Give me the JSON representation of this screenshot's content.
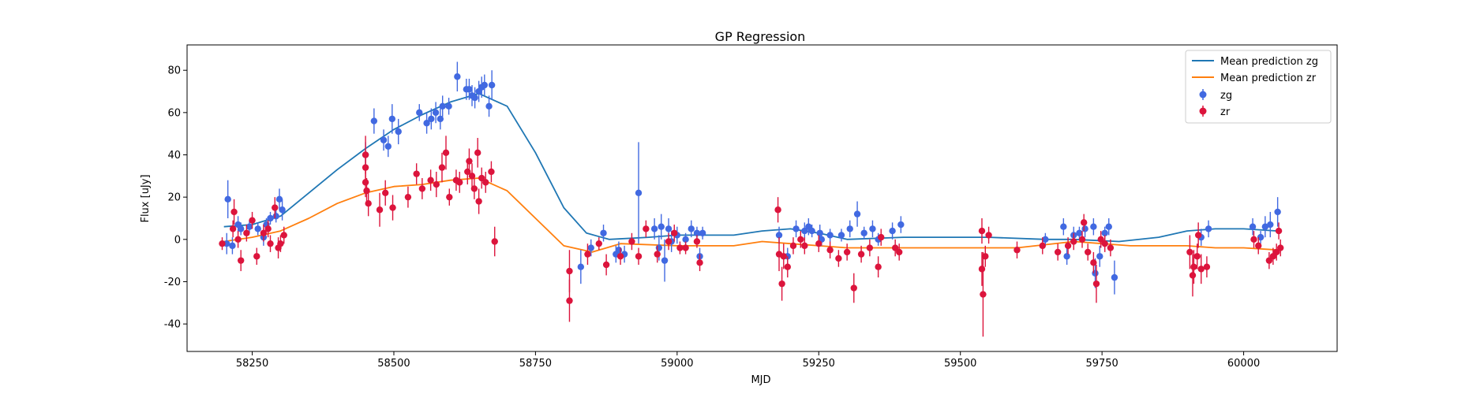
{
  "chart_data": {
    "type": "scatter",
    "title": "GP Regression",
    "xlabel": "MJD",
    "ylabel": "Flux [uJy]",
    "xlim": [
      58135,
      60165
    ],
    "ylim": [
      -53,
      92
    ],
    "x_ticks": [
      58250,
      58500,
      58750,
      59000,
      59250,
      59500,
      59750,
      60000
    ],
    "y_ticks": [
      -40,
      -20,
      0,
      20,
      40,
      60,
      80
    ],
    "grid": false,
    "legend_position": "top-right",
    "series": [
      {
        "name": "Mean prediction zg",
        "kind": "line",
        "color": "#1f77b4",
        "points": [
          [
            58200,
            6
          ],
          [
            58250,
            7
          ],
          [
            58300,
            11
          ],
          [
            58350,
            22
          ],
          [
            58400,
            33
          ],
          [
            58450,
            43
          ],
          [
            58500,
            52
          ],
          [
            58550,
            59
          ],
          [
            58600,
            65
          ],
          [
            58650,
            69
          ],
          [
            58700,
            63
          ],
          [
            58750,
            41
          ],
          [
            58800,
            15
          ],
          [
            58840,
            3
          ],
          [
            58880,
            0
          ],
          [
            58950,
            1
          ],
          [
            59000,
            2
          ],
          [
            59100,
            2
          ],
          [
            59150,
            4
          ],
          [
            59200,
            5
          ],
          [
            59250,
            3
          ],
          [
            59300,
            0
          ],
          [
            59400,
            1
          ],
          [
            59500,
            1
          ],
          [
            59550,
            1
          ],
          [
            59650,
            0
          ],
          [
            59700,
            0
          ],
          [
            59780,
            -1
          ],
          [
            59850,
            1
          ],
          [
            59900,
            4
          ],
          [
            59950,
            5
          ],
          [
            60000,
            5
          ],
          [
            60060,
            4
          ]
        ]
      },
      {
        "name": "Mean prediction zr",
        "kind": "line",
        "color": "#ff7f0e",
        "points": [
          [
            58200,
            -1
          ],
          [
            58250,
            1
          ],
          [
            58300,
            4
          ],
          [
            58350,
            10
          ],
          [
            58400,
            17
          ],
          [
            58450,
            22
          ],
          [
            58500,
            25
          ],
          [
            58550,
            26
          ],
          [
            58600,
            28
          ],
          [
            58650,
            29
          ],
          [
            58700,
            23
          ],
          [
            58750,
            10
          ],
          [
            58800,
            -3
          ],
          [
            58850,
            -6
          ],
          [
            58900,
            -2
          ],
          [
            59000,
            -3
          ],
          [
            59100,
            -3
          ],
          [
            59150,
            -1
          ],
          [
            59200,
            -2
          ],
          [
            59300,
            -4
          ],
          [
            59500,
            -4
          ],
          [
            59600,
            -4
          ],
          [
            59700,
            -1
          ],
          [
            59800,
            -3
          ],
          [
            59900,
            -3
          ],
          [
            59950,
            -4
          ],
          [
            60000,
            -4
          ],
          [
            60060,
            -5
          ]
        ]
      },
      {
        "name": "zg",
        "kind": "errorbar",
        "color": "#4169e1",
        "points": [
          [
            58205,
            -2,
            5
          ],
          [
            58207,
            19,
            9
          ],
          [
            58215,
            -3,
            4
          ],
          [
            58225,
            7,
            4
          ],
          [
            58230,
            5,
            3
          ],
          [
            58245,
            6,
            3
          ],
          [
            58260,
            5,
            3
          ],
          [
            58270,
            1,
            4
          ],
          [
            58275,
            7,
            3
          ],
          [
            58282,
            10,
            3
          ],
          [
            58292,
            11,
            3
          ],
          [
            58298,
            19,
            5
          ],
          [
            58303,
            14,
            5
          ],
          [
            58450,
            40,
            6
          ],
          [
            58465,
            56,
            6
          ],
          [
            58482,
            47,
            5
          ],
          [
            58490,
            44,
            5
          ],
          [
            58497,
            57,
            7
          ],
          [
            58508,
            51,
            6
          ],
          [
            58545,
            60,
            4
          ],
          [
            58558,
            55,
            5
          ],
          [
            58566,
            57,
            5
          ],
          [
            58574,
            60,
            5
          ],
          [
            58582,
            57,
            5
          ],
          [
            58586,
            63,
            5
          ],
          [
            58597,
            63,
            4
          ],
          [
            58612,
            77,
            7
          ],
          [
            58628,
            71,
            5
          ],
          [
            58633,
            71,
            5
          ],
          [
            58638,
            68,
            5
          ],
          [
            58643,
            67,
            5
          ],
          [
            58650,
            70,
            5
          ],
          [
            58655,
            72,
            5
          ],
          [
            58660,
            73,
            5
          ],
          [
            58668,
            63,
            5
          ],
          [
            58673,
            73,
            7
          ],
          [
            58830,
            -13,
            8
          ],
          [
            58848,
            -4,
            4
          ],
          [
            58870,
            3,
            4
          ],
          [
            58892,
            -7,
            4
          ],
          [
            58897,
            -5,
            4
          ],
          [
            58907,
            -7,
            4
          ],
          [
            58932,
            22,
            24
          ],
          [
            58960,
            5,
            5
          ],
          [
            58968,
            -4,
            6
          ],
          [
            58972,
            6,
            6
          ],
          [
            58978,
            -10,
            10
          ],
          [
            58985,
            5,
            5
          ],
          [
            58990,
            -1,
            5
          ],
          [
            59000,
            2,
            4
          ],
          [
            59015,
            0,
            3
          ],
          [
            59025,
            5,
            4
          ],
          [
            59035,
            3,
            3
          ],
          [
            59040,
            -8,
            4
          ],
          [
            59045,
            3,
            3
          ],
          [
            59180,
            2,
            4
          ],
          [
            59195,
            -8,
            4
          ],
          [
            59210,
            5,
            4
          ],
          [
            59225,
            4,
            4
          ],
          [
            59232,
            6,
            4
          ],
          [
            59238,
            4,
            3
          ],
          [
            59252,
            3,
            4
          ],
          [
            59255,
            0,
            3
          ],
          [
            59270,
            2,
            3
          ],
          [
            59290,
            2,
            3
          ],
          [
            59305,
            5,
            4
          ],
          [
            59318,
            12,
            6
          ],
          [
            59330,
            3,
            3
          ],
          [
            59345,
            5,
            4
          ],
          [
            59355,
            0,
            3
          ],
          [
            59380,
            4,
            4
          ],
          [
            59395,
            7,
            4
          ],
          [
            59650,
            0,
            3
          ],
          [
            59682,
            6,
            4
          ],
          [
            59688,
            -8,
            4
          ],
          [
            59700,
            2,
            4
          ],
          [
            59710,
            3,
            3
          ],
          [
            59720,
            5,
            4
          ],
          [
            59735,
            6,
            4
          ],
          [
            59738,
            -16,
            7
          ],
          [
            59746,
            -8,
            5
          ],
          [
            59755,
            3,
            3
          ],
          [
            59762,
            6,
            4
          ],
          [
            59772,
            -18,
            8
          ],
          [
            59925,
            1,
            4
          ],
          [
            59938,
            5,
            4
          ],
          [
            60016,
            6,
            4
          ],
          [
            60030,
            1,
            3
          ],
          [
            60038,
            6,
            5
          ],
          [
            60047,
            7,
            6
          ],
          [
            60060,
            13,
            7
          ]
        ]
      },
      {
        "name": "zr",
        "kind": "errorbar",
        "color": "#dc143c",
        "points": [
          [
            58197,
            -2,
            3
          ],
          [
            58216,
            5,
            4
          ],
          [
            58218,
            13,
            6
          ],
          [
            58225,
            0,
            4
          ],
          [
            58230,
            -10,
            5
          ],
          [
            58240,
            3,
            4
          ],
          [
            58250,
            9,
            4
          ],
          [
            58258,
            -8,
            4
          ],
          [
            58270,
            3,
            4
          ],
          [
            58278,
            5,
            4
          ],
          [
            58282,
            -2,
            4
          ],
          [
            58290,
            15,
            5
          ],
          [
            58296,
            -4,
            5
          ],
          [
            58300,
            -2,
            4
          ],
          [
            58306,
            2,
            4
          ],
          [
            58450,
            40,
            9
          ],
          [
            58450,
            34,
            7
          ],
          [
            58450,
            27,
            7
          ],
          [
            58452,
            23,
            6
          ],
          [
            58455,
            17,
            6
          ],
          [
            58475,
            14,
            8
          ],
          [
            58485,
            22,
            6
          ],
          [
            58498,
            15,
            6
          ],
          [
            58525,
            20,
            5
          ],
          [
            58540,
            31,
            5
          ],
          [
            58550,
            24,
            5
          ],
          [
            58565,
            28,
            5
          ],
          [
            58575,
            26,
            6
          ],
          [
            58585,
            34,
            7
          ],
          [
            58592,
            41,
            8
          ],
          [
            58598,
            20,
            4
          ],
          [
            58610,
            28,
            5
          ],
          [
            58616,
            27,
            5
          ],
          [
            58630,
            32,
            6
          ],
          [
            58633,
            37,
            6
          ],
          [
            58638,
            30,
            6
          ],
          [
            58642,
            24,
            5
          ],
          [
            58648,
            41,
            7
          ],
          [
            58650,
            18,
            6
          ],
          [
            58655,
            29,
            5
          ],
          [
            58662,
            27,
            5
          ],
          [
            58672,
            32,
            5
          ],
          [
            58678,
            -1,
            7
          ],
          [
            58810,
            -15,
            10
          ],
          [
            58810,
            -29,
            10
          ],
          [
            58842,
            -7,
            5
          ],
          [
            58862,
            -2,
            3
          ],
          [
            58875,
            -12,
            5
          ],
          [
            58900,
            -8,
            4
          ],
          [
            58920,
            -1,
            4
          ],
          [
            58932,
            -8,
            4
          ],
          [
            58945,
            5,
            4
          ],
          [
            58965,
            -7,
            4
          ],
          [
            58985,
            -1,
            4
          ],
          [
            58995,
            3,
            4
          ],
          [
            59005,
            -4,
            3
          ],
          [
            59015,
            -4,
            3
          ],
          [
            59035,
            -1,
            3
          ],
          [
            59040,
            -11,
            4
          ],
          [
            59178,
            14,
            6
          ],
          [
            59180,
            -7,
            8
          ],
          [
            59185,
            -21,
            8
          ],
          [
            59188,
            -8,
            6
          ],
          [
            59195,
            -13,
            5
          ],
          [
            59205,
            -3,
            4
          ],
          [
            59218,
            0,
            4
          ],
          [
            59225,
            -3,
            4
          ],
          [
            59250,
            -2,
            4
          ],
          [
            59270,
            -5,
            4
          ],
          [
            59285,
            -9,
            4
          ],
          [
            59300,
            -6,
            4
          ],
          [
            59312,
            -23,
            7
          ],
          [
            59325,
            -7,
            4
          ],
          [
            59340,
            -4,
            4
          ],
          [
            59355,
            -13,
            5
          ],
          [
            59360,
            1,
            4
          ],
          [
            59385,
            -4,
            4
          ],
          [
            59392,
            -6,
            4
          ],
          [
            59538,
            4,
            6
          ],
          [
            59538,
            -14,
            8
          ],
          [
            59540,
            -26,
            20
          ],
          [
            59544,
            -8,
            5
          ],
          [
            59550,
            2,
            4
          ],
          [
            59600,
            -5,
            4
          ],
          [
            59645,
            -3,
            4
          ],
          [
            59672,
            -6,
            4
          ],
          [
            59690,
            -3,
            4
          ],
          [
            59700,
            -1,
            4
          ],
          [
            59715,
            0,
            4
          ],
          [
            59718,
            8,
            4
          ],
          [
            59725,
            -6,
            4
          ],
          [
            59735,
            -11,
            5
          ],
          [
            59740,
            -21,
            9
          ],
          [
            59748,
            0,
            4
          ],
          [
            59755,
            -2,
            4
          ],
          [
            59765,
            -4,
            4
          ],
          [
            59905,
            -6,
            8
          ],
          [
            59910,
            -17,
            10
          ],
          [
            59912,
            -13,
            8
          ],
          [
            59918,
            -8,
            6
          ],
          [
            59920,
            2,
            6
          ],
          [
            59925,
            -14,
            7
          ],
          [
            59935,
            -13,
            5
          ],
          [
            60018,
            0,
            4
          ],
          [
            60026,
            -3,
            4
          ],
          [
            60045,
            -10,
            4
          ],
          [
            60052,
            -8,
            4
          ],
          [
            60058,
            -6,
            4
          ],
          [
            60062,
            4,
            4
          ],
          [
            60065,
            -4,
            4
          ]
        ]
      }
    ]
  }
}
